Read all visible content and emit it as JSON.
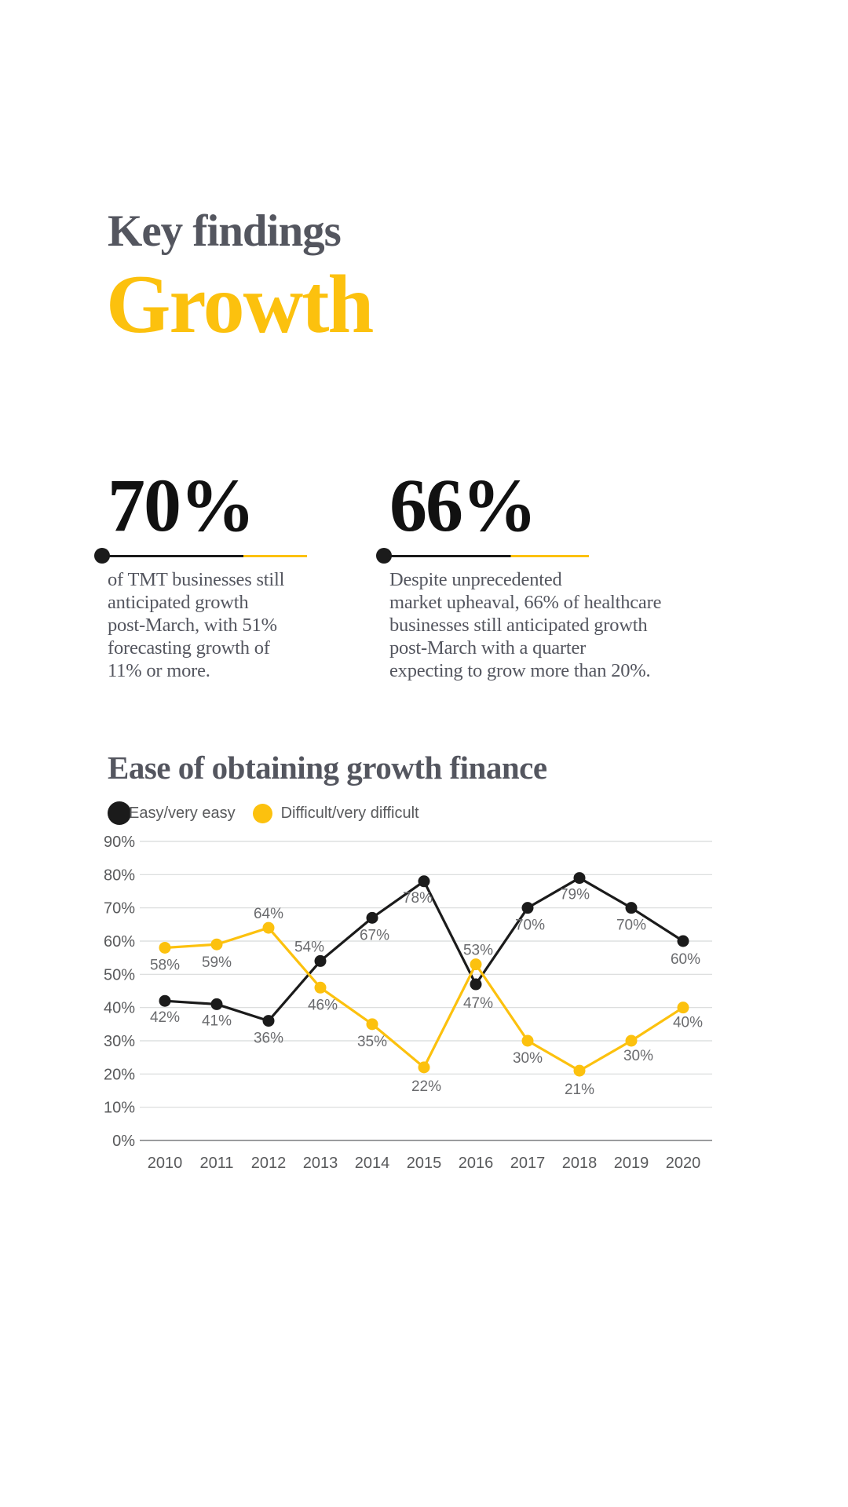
{
  "page": {
    "background": "#FFFFFF"
  },
  "header": {
    "eyebrow": "Key findings",
    "title": "Growth"
  },
  "stats": [
    {
      "value": "70%",
      "description": "of TMT businesses still\nanticipated growth\npost-March, with 51%\nforecasting growth of\n11% or more."
    },
    {
      "value": "66%",
      "description": "Despite unprecedented\nmarket upheaval, 66% of healthcare\nbusinesses still anticipated growth\npost-March with a quarter\nexpecting to grow more than 20%."
    }
  ],
  "chart": {
    "title": "Ease of obtaining growth finance",
    "legend": [
      {
        "label": "Easy/very easy",
        "color": "#1B1B1B"
      },
      {
        "label": "Difficult/very difficult",
        "color": "#FCC10E"
      }
    ]
  },
  "chart_data": {
    "type": "line",
    "title": "Ease of obtaining growth finance",
    "x": [
      "2010",
      "2011",
      "2012",
      "2013",
      "2014",
      "2015",
      "2016",
      "2017",
      "2018",
      "2019",
      "2020"
    ],
    "series": [
      {
        "name": "Easy/very easy",
        "color": "#1B1B1B",
        "values": [
          42,
          41,
          36,
          54,
          67,
          78,
          47,
          70,
          79,
          70,
          60
        ]
      },
      {
        "name": "Difficult/very difficult",
        "color": "#FCC10E",
        "values": [
          58,
          59,
          64,
          46,
          35,
          22,
          53,
          30,
          21,
          30,
          40
        ]
      }
    ],
    "ylim": [
      0,
      90
    ],
    "ytick_step": 10,
    "ytick_labels": [
      "0%",
      "10%",
      "20%",
      "30%",
      "40%",
      "50%",
      "60%",
      "70%",
      "80%",
      "90%"
    ],
    "grid": true,
    "legend_position": "top-left",
    "point_labels": "value + %"
  },
  "colors": {
    "accent_yellow": "#FCC10E",
    "series_black": "#1B1B1B",
    "heading_gray": "#54565F",
    "body_gray": "#54565F",
    "axis_gray": "#58595B",
    "data_label_gray": "#6A6B6E",
    "gridline": "#D8D9DA",
    "baseline": "#9A9C9E"
  }
}
